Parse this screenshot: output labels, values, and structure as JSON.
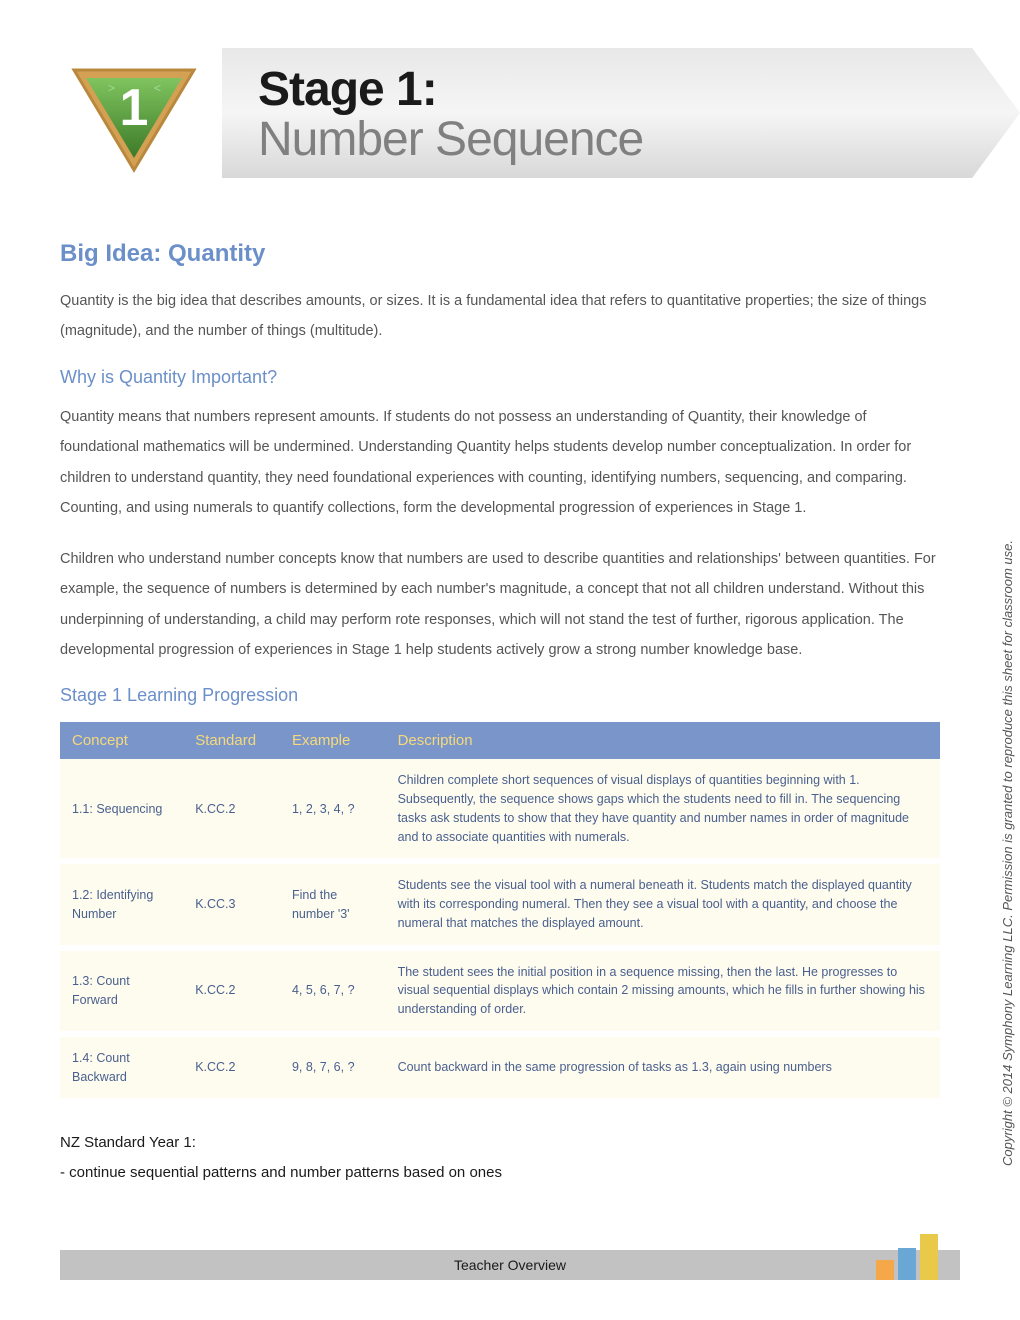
{
  "header": {
    "title_line1": "Stage 1:",
    "title_line2": "Number Sequence",
    "badge_number": "1"
  },
  "badge": {
    "outer_border": "#d4a054",
    "inner_fill_top": "#5fa843",
    "inner_fill_bottom": "#3d7a28",
    "number_color": "#ffffff"
  },
  "big_idea": {
    "heading": "Big Idea:  Quantity",
    "paragraph": "Quantity is the big idea that describes amounts, or sizes. It is a fundamental idea that refers to quantitative properties; the size of things (magnitude), and the number of things (multitude)."
  },
  "why_important": {
    "heading": "Why is Quantity Important?",
    "p1": "Quantity means that numbers represent amounts. If students do not possess an understanding of Quantity, their knowledge of foundational mathematics will be undermined. Understanding Quantity helps students develop number conceptualization. In order for children to understand quantity, they need foundational experiences with counting, identifying numbers, sequencing, and comparing. Counting, and using numerals to quantify collections, form the developmental progression of experiences in Stage 1.",
    "p2": "Children who understand number concepts know that numbers are used to describe quantities and relationships' between quantities. For example, the sequence of numbers is determined by each number's magnitude, a concept that not all children understand. Without this underpinning of understanding, a child may perform rote responses, which will not stand the test of further, rigorous application. The developmental progression of experiences in Stage 1 help students actively grow a strong number knowledge base."
  },
  "progression": {
    "heading": "Stage 1 Learning Progression",
    "columns": [
      "Concept",
      "Standard",
      "Example",
      "Description"
    ],
    "rows": [
      {
        "concept": "1.1: Sequencing",
        "standard": "K.CC.2",
        "example": "1, 2, 3, 4, ?",
        "description": "Children complete short sequences of visual displays of quantities beginning with 1. Subsequently, the sequence shows gaps which the students need to fill in. The sequencing tasks ask students to show that they have quantity and number names in order of magnitude and to associate quantities with numerals."
      },
      {
        "concept": "1.2: Identifying Number",
        "standard": "K.CC.3",
        "example": "Find the number '3'",
        "description": "Students see the visual tool with a numeral beneath it. Students match the displayed quantity with its corresponding numeral. Then they see a visual tool with a quantity, and choose the numeral that matches the displayed amount."
      },
      {
        "concept": "1.3: Count Forward",
        "standard": "K.CC.2",
        "example": "4, 5, 6, 7, ?",
        "description": "The student sees the initial position in a sequence missing, then the last. He progresses to visual sequential displays which contain 2 missing amounts, which he fills in further showing his understanding of order."
      },
      {
        "concept": "1.4: Count Backward",
        "standard": "K.CC.2",
        "example": "9, 8, 7, 6, ?",
        "description": "Count backward in the same progression of tasks as 1.3, again using numbers"
      }
    ]
  },
  "nz_standard": {
    "title": "NZ Standard Year 1:",
    "bullet": "- continue sequential patterns and number patterns based on ones"
  },
  "footer": {
    "label": "Teacher Overview",
    "bars": [
      "#f5a84a",
      "#6ba7d4",
      "#e8c94a"
    ]
  },
  "copyright": "Copyright © 2014 Symphony Learning LLC. Permission is granted to reproduce this sheet for classroom use.",
  "colors": {
    "heading_blue": "#6b8fc9",
    "table_header_bg": "#7a95ca",
    "table_header_text": "#f5d97a",
    "table_row_bg": "#fdfcee",
    "table_text": "#4a5f8f",
    "body_text": "#555555",
    "footer_bg": "#c2c2c2"
  },
  "typography": {
    "title_fontsize": 48,
    "heading_fontsize": 24,
    "subheading_fontsize": 18,
    "body_fontsize": 14.5,
    "table_fontsize": 12.5
  }
}
